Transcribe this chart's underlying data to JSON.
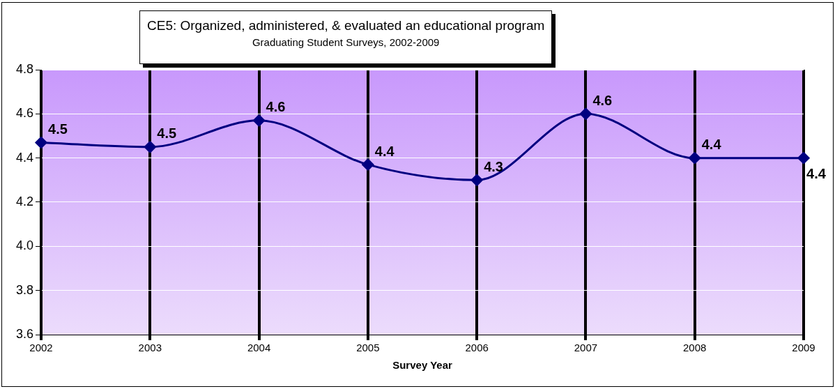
{
  "chart_data": {
    "type": "line",
    "title": "CE5: Organized, administered, & evaluated an educational program",
    "subtitle": "Graduating Student Surveys, 2002-2009",
    "xlabel": "Survey Year",
    "categories": [
      "2002",
      "2003",
      "2004",
      "2005",
      "2006",
      "2007",
      "2008",
      "2009"
    ],
    "series": [
      {
        "color": "#000080",
        "values": [
          4.47,
          4.45,
          4.57,
          4.37,
          4.3,
          4.6,
          4.4,
          4.4
        ],
        "value_labels": [
          "4.5",
          "4.5",
          "4.6",
          "4.4",
          "4.3",
          "4.6",
          "4.4",
          "4.4"
        ]
      }
    ],
    "ylim": [
      3.6,
      4.8
    ],
    "yticks": [
      3.6,
      3.8,
      {
        "value": 4,
        "label": "4.0"
      },
      4.2,
      4.4,
      4.6,
      4.8
    ],
    "grid": true,
    "marker": "diamond",
    "line_style": "solid",
    "legend": false
  }
}
